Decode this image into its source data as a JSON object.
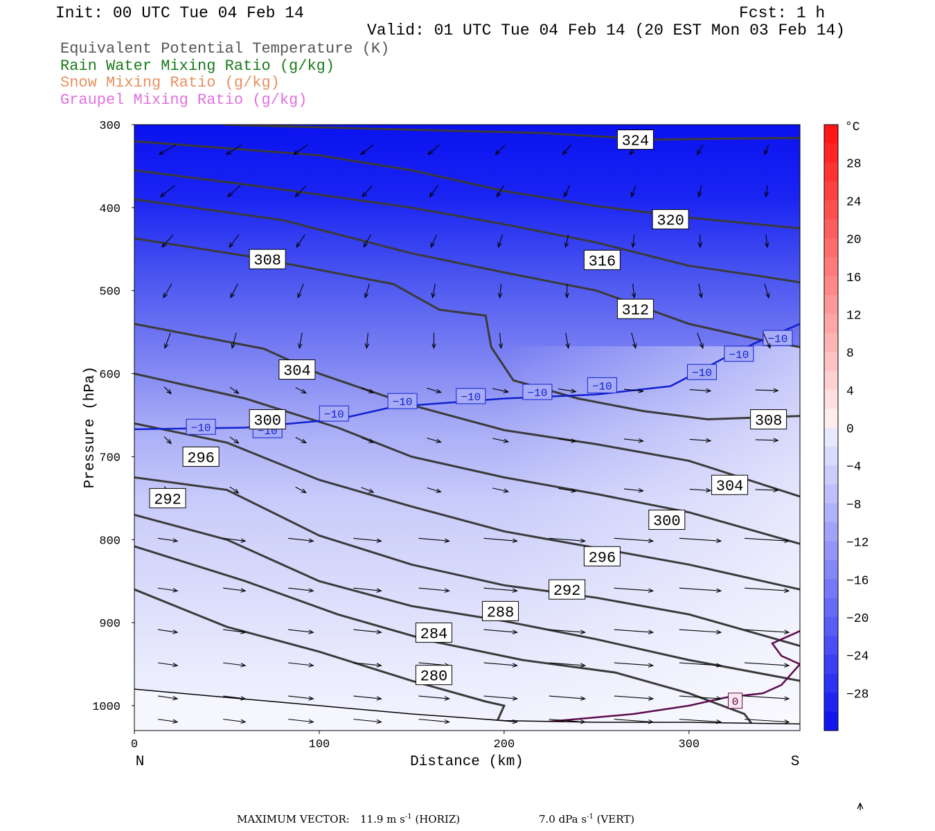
{
  "header": {
    "init": "Init: 00 UTC Tue 04 Feb 14",
    "fcst": "Fcst:    1 h",
    "valid": "Valid: 01 UTC Tue 04 Feb 14 (20 EST Mon 03 Feb 14)"
  },
  "legend": [
    {
      "label": "Equivalent Potential Temperature (K)",
      "color": "#555555"
    },
    {
      "label": "Rain Water Mixing Ratio (g/kg)",
      "color": "#1a7a1a"
    },
    {
      "label": "Snow Mixing Ratio (g/kg)",
      "color": "#e69060"
    },
    {
      "label": "Graupel Mixing Ratio (g/kg)",
      "color": "#e070e0"
    }
  ],
  "chart_data": {
    "type": "cross-section",
    "xlabel": "Distance (km)",
    "ylabel": "Pressure (hPa)",
    "xlim": [
      0,
      360
    ],
    "ylim": [
      1030,
      300
    ],
    "x_ticks": [
      0,
      100,
      200,
      300
    ],
    "y_ticks": [
      300,
      400,
      500,
      600,
      700,
      800,
      900,
      1000
    ],
    "x_end_labels": {
      "left": "N",
      "right": "S"
    },
    "colorbar": {
      "unit": "°C",
      "ticks": [
        28,
        24,
        20,
        16,
        12,
        8,
        4,
        0,
        -4,
        -8,
        -12,
        -16,
        -20,
        -24,
        -28
      ],
      "range": [
        -32,
        32
      ]
    },
    "theta_e_contours": [
      {
        "value": 324,
        "points": [
          [
            48,
            300
          ],
          [
            130,
            305
          ],
          [
            220,
            310
          ],
          [
            280,
            318
          ],
          [
            315,
            317
          ],
          [
            360,
            316
          ]
        ],
        "label_at": [
          271,
          318
        ]
      },
      {
        "value": 320,
        "points": [
          [
            0,
            320
          ],
          [
            100,
            337
          ],
          [
            150,
            355
          ],
          [
            200,
            380
          ],
          [
            250,
            398
          ],
          [
            300,
            412
          ],
          [
            360,
            425
          ]
        ],
        "label_at": [
          290,
          414
        ]
      },
      {
        "value": 316,
        "points": [
          [
            0,
            355
          ],
          [
            70,
            375
          ],
          [
            150,
            400
          ],
          [
            200,
            420
          ],
          [
            250,
            442
          ],
          [
            300,
            470
          ],
          [
            340,
            483
          ],
          [
            360,
            490
          ]
        ],
        "label_at": [
          253,
          463
        ]
      },
      {
        "value": 312,
        "points": [
          [
            0,
            390
          ],
          [
            80,
            415
          ],
          [
            150,
            455
          ],
          [
            200,
            478
          ],
          [
            250,
            500
          ],
          [
            300,
            540
          ],
          [
            340,
            560
          ],
          [
            360,
            568
          ]
        ],
        "label_at": [
          271,
          522
        ]
      },
      {
        "value": 308,
        "points": [
          [
            0,
            437
          ],
          [
            60,
            458
          ],
          [
            140,
            492
          ],
          [
            165,
            523
          ],
          [
            190,
            530
          ],
          [
            193,
            568
          ],
          [
            205,
            608
          ],
          [
            240,
            630
          ],
          [
            275,
            645
          ],
          [
            310,
            655
          ],
          [
            360,
            651
          ]
        ],
        "label_at": [
          72,
          462
        ]
      },
      {
        "value": 308,
        "points": [
          [
            0,
            437
          ],
          [
            60,
            458
          ],
          [
            140,
            492
          ],
          [
            165,
            523
          ],
          [
            190,
            530
          ],
          [
            193,
            568
          ],
          [
            205,
            608
          ],
          [
            240,
            630
          ],
          [
            275,
            645
          ],
          [
            310,
            655
          ],
          [
            360,
            651
          ]
        ],
        "label_at": [
          343,
          655
        ]
      },
      {
        "value": 304,
        "points": [
          [
            0,
            540
          ],
          [
            70,
            570
          ],
          [
            100,
            600
          ],
          [
            150,
            638
          ],
          [
            200,
            668
          ],
          [
            250,
            685
          ],
          [
            300,
            705
          ],
          [
            360,
            748
          ]
        ],
        "label_at": [
          88,
          595
        ],
        "second_label_at": [
          322,
          734
        ]
      },
      {
        "value": 300,
        "points": [
          [
            0,
            600
          ],
          [
            60,
            630
          ],
          [
            110,
            665
          ],
          [
            150,
            700
          ],
          [
            200,
            725
          ],
          [
            250,
            745
          ],
          [
            300,
            767
          ],
          [
            360,
            805
          ]
        ],
        "label_at": [
          72,
          655
        ],
        "second_label_at": [
          288,
          776
        ]
      },
      {
        "value": 296,
        "points": [
          [
            0,
            660
          ],
          [
            50,
            683
          ],
          [
            100,
            728
          ],
          [
            150,
            760
          ],
          [
            200,
            790
          ],
          [
            250,
            810
          ],
          [
            300,
            830
          ],
          [
            360,
            860
          ]
        ],
        "label_at": [
          36,
          700
        ],
        "second_label_at": [
          253,
          820
        ]
      },
      {
        "value": 292,
        "points": [
          [
            0,
            725
          ],
          [
            50,
            740
          ],
          [
            100,
            795
          ],
          [
            150,
            830
          ],
          [
            200,
            855
          ],
          [
            250,
            870
          ],
          [
            300,
            890
          ],
          [
            360,
            928
          ]
        ],
        "label_at": [
          18,
          750
        ],
        "second_label_at": [
          234,
          860
        ]
      },
      {
        "value": 288,
        "points": [
          [
            0,
            770
          ],
          [
            50,
            800
          ],
          [
            100,
            850
          ],
          [
            150,
            880
          ],
          [
            200,
            898
          ],
          [
            250,
            920
          ],
          [
            300,
            945
          ],
          [
            360,
            970
          ]
        ],
        "label_at": [
          198,
          886
        ]
      },
      {
        "value": 284,
        "points": [
          [
            0,
            808
          ],
          [
            60,
            850
          ],
          [
            110,
            890
          ],
          [
            160,
            922
          ],
          [
            210,
            945
          ],
          [
            260,
            960
          ],
          [
            300,
            985
          ],
          [
            330,
            1010
          ],
          [
            335,
            1025
          ]
        ],
        "label_at": [
          162,
          912
        ]
      },
      {
        "value": 280,
        "points": [
          [
            0,
            860
          ],
          [
            50,
            905
          ],
          [
            100,
            935
          ],
          [
            150,
            970
          ],
          [
            190,
            995
          ],
          [
            200,
            1000
          ],
          [
            195,
            1025
          ]
        ],
        "label_at": [
          162,
          963
        ]
      }
    ],
    "minus10_isotherm": {
      "label": "−10",
      "points": [
        [
          0,
          667
        ],
        [
          60,
          665
        ],
        [
          110,
          655
        ],
        [
          140,
          640
        ],
        [
          200,
          630
        ],
        [
          250,
          625
        ],
        [
          290,
          615
        ],
        [
          303,
          600
        ],
        [
          320,
          580
        ],
        [
          336,
          563
        ],
        [
          360,
          540
        ]
      ],
      "label_positions": [
        [
          36,
          664
        ],
        [
          72,
          668
        ],
        [
          108,
          648
        ],
        [
          145,
          633
        ],
        [
          182,
          627
        ],
        [
          218,
          622
        ],
        [
          253,
          614
        ],
        [
          307,
          598
        ],
        [
          327,
          576
        ],
        [
          348,
          557
        ]
      ]
    },
    "zero_isotherm": {
      "label": "0",
      "points": [
        [
          220,
          1020
        ],
        [
          270,
          1010
        ],
        [
          300,
          1000
        ],
        [
          320,
          990
        ],
        [
          340,
          985
        ],
        [
          350,
          975
        ],
        [
          360,
          950
        ],
        [
          350,
          940
        ],
        [
          345,
          925
        ],
        [
          355,
          915
        ],
        [
          360,
          910
        ]
      ],
      "label_positions": [
        [
          325,
          994
        ]
      ]
    },
    "surface": {
      "pressure_profile": [
        [
          0,
          980
        ],
        [
          50,
          990
        ],
        [
          100,
          1000
        ],
        [
          150,
          1010
        ],
        [
          200,
          1018
        ],
        [
          250,
          1020
        ],
        [
          300,
          1020
        ],
        [
          360,
          1022
        ]
      ]
    },
    "wind_vectors_note": "cross-section winds",
    "max_vector": {
      "horiz": "11.9 m s⁻¹ (HORIZ)",
      "vert": "7.0 dPa s⁻¹ (VERT)"
    }
  },
  "footer": {
    "max_vector_label": "MAXIMUM VECTOR:",
    "horiz_value": "11.9 m s",
    "horiz_exp": "-1",
    "horiz_unit": " (HORIZ)",
    "vert_value": "7.0 dPa s",
    "vert_exp": "-1",
    "vert_unit": " (VERT)"
  }
}
